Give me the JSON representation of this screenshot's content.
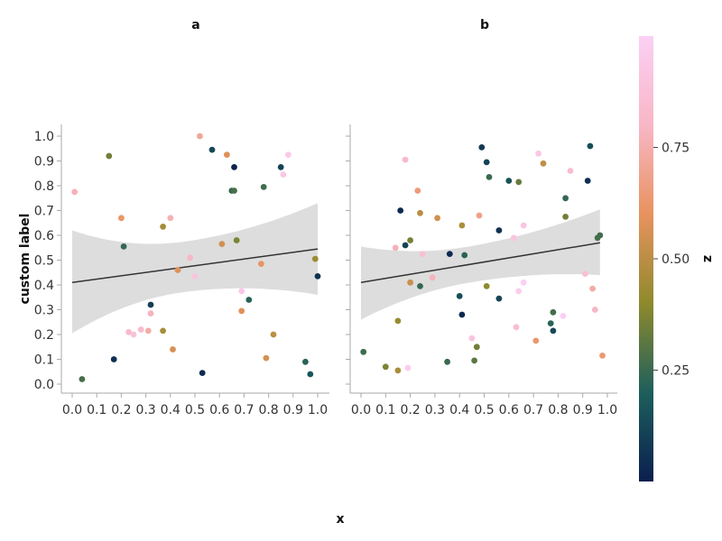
{
  "chart_data": {
    "type": "scatter",
    "xlabel": "x",
    "ylabel": "custom label",
    "color_label": "z",
    "xlim": [
      0,
      1
    ],
    "ylim": [
      0,
      1
    ],
    "x_ticks": [
      0.0,
      0.1,
      0.2,
      0.3,
      0.4,
      0.5,
      0.6,
      0.7,
      0.8,
      0.9,
      1.0
    ],
    "x_tick_labels": [
      "0.0",
      "0.1",
      "0.2",
      "0.3",
      "0.4",
      "0.5",
      "0.6",
      "0.7",
      "0.8",
      "0.9",
      "1.0"
    ],
    "y_ticks": [
      0.0,
      0.1,
      0.2,
      0.3,
      0.4,
      0.5,
      0.6,
      0.7,
      0.8,
      0.9,
      1.0
    ],
    "y_tick_labels": [
      "0.0",
      "0.1",
      "0.2",
      "0.3",
      "0.4",
      "0.5",
      "0.6",
      "0.7",
      "0.8",
      "0.9",
      "1.0"
    ],
    "colorbar": {
      "ticks": [
        0.25,
        0.5,
        0.75
      ],
      "tick_labels": [
        "0.25",
        "0.50",
        "0.75"
      ],
      "range": [
        0,
        1
      ],
      "colors": [
        "#0a1f4e",
        "#1d5f5c",
        "#8e8a2c",
        "#e8925e",
        "#f8b7c6",
        "#fbd0f5"
      ]
    },
    "regression_color": "#333333",
    "band_color": "#dddddd",
    "grid": false,
    "legend": "right",
    "facets": [
      {
        "title": "a",
        "fit": {
          "x": [
            0,
            1
          ],
          "y": [
            0.41,
            0.545
          ],
          "ci_low": [
            0.205,
            0.36
          ],
          "ci_high": [
            0.62,
            0.73
          ]
        },
        "points": [
          {
            "x": 0.01,
            "y": 0.775,
            "z": 0.77
          },
          {
            "x": 0.04,
            "y": 0.02,
            "z": 0.27
          },
          {
            "x": 0.15,
            "y": 0.92,
            "z": 0.35
          },
          {
            "x": 0.17,
            "y": 0.1,
            "z": 0.05
          },
          {
            "x": 0.2,
            "y": 0.67,
            "z": 0.62
          },
          {
            "x": 0.21,
            "y": 0.555,
            "z": 0.24
          },
          {
            "x": 0.23,
            "y": 0.21,
            "z": 0.83
          },
          {
            "x": 0.25,
            "y": 0.2,
            "z": 0.88
          },
          {
            "x": 0.28,
            "y": 0.22,
            "z": 0.82
          },
          {
            "x": 0.31,
            "y": 0.215,
            "z": 0.74
          },
          {
            "x": 0.32,
            "y": 0.32,
            "z": 0.1
          },
          {
            "x": 0.32,
            "y": 0.285,
            "z": 0.78
          },
          {
            "x": 0.37,
            "y": 0.215,
            "z": 0.46
          },
          {
            "x": 0.37,
            "y": 0.635,
            "z": 0.45
          },
          {
            "x": 0.4,
            "y": 0.67,
            "z": 0.77
          },
          {
            "x": 0.41,
            "y": 0.14,
            "z": 0.56
          },
          {
            "x": 0.43,
            "y": 0.46,
            "z": 0.58
          },
          {
            "x": 0.48,
            "y": 0.51,
            "z": 0.8
          },
          {
            "x": 0.5,
            "y": 0.435,
            "z": 0.9
          },
          {
            "x": 0.52,
            "y": 1.0,
            "z": 0.71
          },
          {
            "x": 0.53,
            "y": 0.045,
            "z": 0.04
          },
          {
            "x": 0.57,
            "y": 0.945,
            "z": 0.13
          },
          {
            "x": 0.61,
            "y": 0.565,
            "z": 0.55
          },
          {
            "x": 0.63,
            "y": 0.925,
            "z": 0.58
          },
          {
            "x": 0.65,
            "y": 0.78,
            "z": 0.24
          },
          {
            "x": 0.66,
            "y": 0.78,
            "z": 0.28
          },
          {
            "x": 0.66,
            "y": 0.875,
            "z": 0.02
          },
          {
            "x": 0.67,
            "y": 0.58,
            "z": 0.37
          },
          {
            "x": 0.69,
            "y": 0.375,
            "z": 0.94
          },
          {
            "x": 0.69,
            "y": 0.295,
            "z": 0.58
          },
          {
            "x": 0.72,
            "y": 0.34,
            "z": 0.22
          },
          {
            "x": 0.77,
            "y": 0.485,
            "z": 0.61
          },
          {
            "x": 0.78,
            "y": 0.795,
            "z": 0.26
          },
          {
            "x": 0.79,
            "y": 0.105,
            "z": 0.56
          },
          {
            "x": 0.82,
            "y": 0.2,
            "z": 0.5
          },
          {
            "x": 0.85,
            "y": 0.875,
            "z": 0.11
          },
          {
            "x": 0.86,
            "y": 0.845,
            "z": 0.93
          },
          {
            "x": 0.88,
            "y": 0.925,
            "z": 0.95
          },
          {
            "x": 0.95,
            "y": 0.09,
            "z": 0.22
          },
          {
            "x": 0.97,
            "y": 0.04,
            "z": 0.17
          },
          {
            "x": 0.99,
            "y": 0.505,
            "z": 0.43
          },
          {
            "x": 1.0,
            "y": 0.435,
            "z": 0.06
          }
        ]
      },
      {
        "title": "b",
        "fit": {
          "x": [
            0,
            0.97
          ],
          "y": [
            0.41,
            0.57
          ],
          "ci_low": [
            0.26,
            0.44
          ],
          "ci_high": [
            0.555,
            0.705
          ]
        },
        "points": [
          {
            "x": 0.01,
            "y": 0.13,
            "z": 0.26
          },
          {
            "x": 0.1,
            "y": 0.07,
            "z": 0.37
          },
          {
            "x": 0.14,
            "y": 0.55,
            "z": 0.77
          },
          {
            "x": 0.15,
            "y": 0.255,
            "z": 0.42
          },
          {
            "x": 0.15,
            "y": 0.055,
            "z": 0.46
          },
          {
            "x": 0.16,
            "y": 0.7,
            "z": 0.03
          },
          {
            "x": 0.18,
            "y": 0.56,
            "z": 0.12
          },
          {
            "x": 0.18,
            "y": 0.905,
            "z": 0.82
          },
          {
            "x": 0.19,
            "y": 0.065,
            "z": 0.97
          },
          {
            "x": 0.2,
            "y": 0.58,
            "z": 0.36
          },
          {
            "x": 0.2,
            "y": 0.41,
            "z": 0.53
          },
          {
            "x": 0.23,
            "y": 0.78,
            "z": 0.65
          },
          {
            "x": 0.24,
            "y": 0.395,
            "z": 0.24
          },
          {
            "x": 0.24,
            "y": 0.69,
            "z": 0.5
          },
          {
            "x": 0.25,
            "y": 0.525,
            "z": 0.86
          },
          {
            "x": 0.29,
            "y": 0.43,
            "z": 0.78
          },
          {
            "x": 0.31,
            "y": 0.67,
            "z": 0.55
          },
          {
            "x": 0.35,
            "y": 0.09,
            "z": 0.25
          },
          {
            "x": 0.36,
            "y": 0.525,
            "z": 0.03
          },
          {
            "x": 0.4,
            "y": 0.355,
            "z": 0.14
          },
          {
            "x": 0.41,
            "y": 0.64,
            "z": 0.47
          },
          {
            "x": 0.41,
            "y": 0.28,
            "z": 0.03
          },
          {
            "x": 0.42,
            "y": 0.52,
            "z": 0.22
          },
          {
            "x": 0.45,
            "y": 0.185,
            "z": 0.9
          },
          {
            "x": 0.46,
            "y": 0.095,
            "z": 0.31
          },
          {
            "x": 0.47,
            "y": 0.15,
            "z": 0.35
          },
          {
            "x": 0.48,
            "y": 0.68,
            "z": 0.68
          },
          {
            "x": 0.49,
            "y": 0.955,
            "z": 0.08
          },
          {
            "x": 0.51,
            "y": 0.895,
            "z": 0.11
          },
          {
            "x": 0.51,
            "y": 0.395,
            "z": 0.4
          },
          {
            "x": 0.52,
            "y": 0.835,
            "z": 0.25
          },
          {
            "x": 0.56,
            "y": 0.62,
            "z": 0.06
          },
          {
            "x": 0.56,
            "y": 0.345,
            "z": 0.12
          },
          {
            "x": 0.6,
            "y": 0.82,
            "z": 0.16
          },
          {
            "x": 0.62,
            "y": 0.59,
            "z": 0.9
          },
          {
            "x": 0.63,
            "y": 0.23,
            "z": 0.85
          },
          {
            "x": 0.64,
            "y": 0.375,
            "z": 0.97
          },
          {
            "x": 0.64,
            "y": 0.815,
            "z": 0.33
          },
          {
            "x": 0.66,
            "y": 0.64,
            "z": 0.91
          },
          {
            "x": 0.66,
            "y": 0.41,
            "z": 0.99
          },
          {
            "x": 0.71,
            "y": 0.175,
            "z": 0.63
          },
          {
            "x": 0.72,
            "y": 0.93,
            "z": 0.93
          },
          {
            "x": 0.74,
            "y": 0.89,
            "z": 0.51
          },
          {
            "x": 0.77,
            "y": 0.245,
            "z": 0.22
          },
          {
            "x": 0.78,
            "y": 0.29,
            "z": 0.27
          },
          {
            "x": 0.78,
            "y": 0.215,
            "z": 0.13
          },
          {
            "x": 0.82,
            "y": 0.275,
            "z": 0.99
          },
          {
            "x": 0.83,
            "y": 0.675,
            "z": 0.35
          },
          {
            "x": 0.83,
            "y": 0.75,
            "z": 0.24
          },
          {
            "x": 0.85,
            "y": 0.86,
            "z": 0.85
          },
          {
            "x": 0.91,
            "y": 0.445,
            "z": 0.86
          },
          {
            "x": 0.92,
            "y": 0.82,
            "z": 0.05
          },
          {
            "x": 0.93,
            "y": 0.96,
            "z": 0.14
          },
          {
            "x": 0.94,
            "y": 0.385,
            "z": 0.74
          },
          {
            "x": 0.95,
            "y": 0.3,
            "z": 0.8
          },
          {
            "x": 0.96,
            "y": 0.59,
            "z": 0.27
          },
          {
            "x": 0.97,
            "y": 0.6,
            "z": 0.26
          },
          {
            "x": 0.98,
            "y": 0.115,
            "z": 0.64
          }
        ]
      }
    ]
  }
}
